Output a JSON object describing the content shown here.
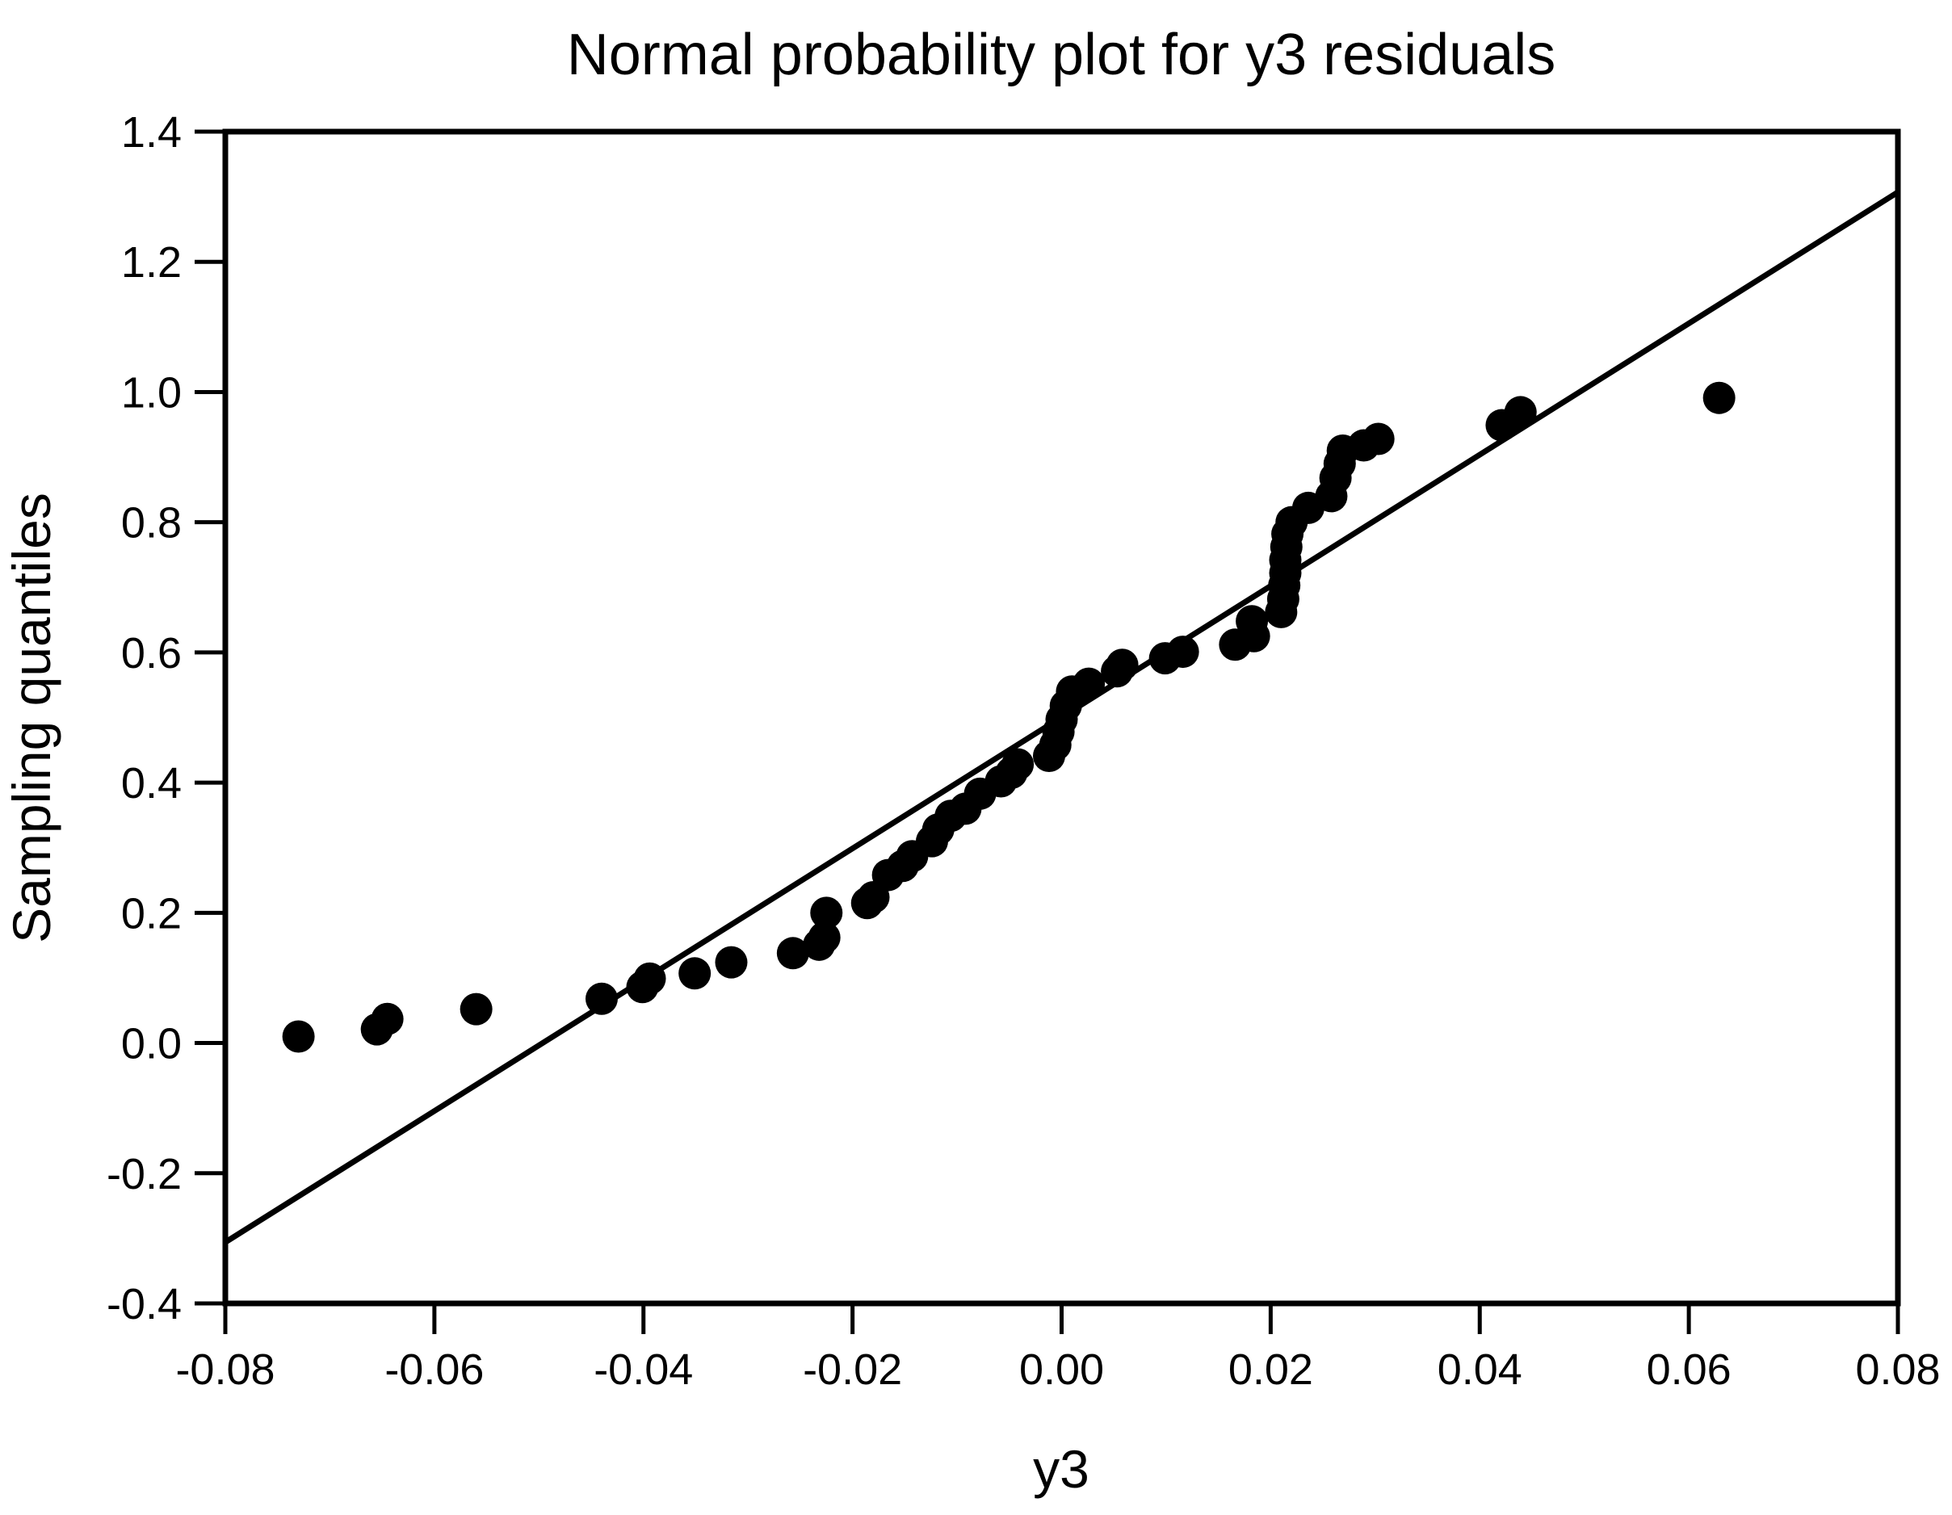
{
  "title": "Normal probability plot for y3 residuals",
  "x_axis": {
    "label": "y3",
    "min": -0.08,
    "max": 0.08,
    "tick_values": [
      -0.08,
      -0.06,
      -0.04,
      -0.02,
      0.0,
      0.02,
      0.04,
      0.06,
      0.08
    ],
    "tick_labels": [
      "-0.08",
      "-0.06",
      "-0.04",
      "-0.02",
      "0.00",
      "0.02",
      "0.04",
      "0.06",
      "0.08"
    ]
  },
  "y_axis": {
    "label": "Sampling quantiles",
    "min": -0.4,
    "max": 1.4,
    "tick_values": [
      -0.4,
      -0.2,
      0.0,
      0.2,
      0.4,
      0.6,
      0.8,
      1.0,
      1.2,
      1.4
    ],
    "tick_labels": [
      "-0.4",
      "-0.2",
      "0.0",
      "0.2",
      "0.4",
      "0.6",
      "0.8",
      "1.0",
      "1.2",
      "1.4"
    ]
  },
  "colors": {
    "background": "#ffffff",
    "frame": "#000000",
    "marker": "#000000",
    "reference_line": "#000000",
    "text": "#000000"
  },
  "chart_data": {
    "type": "scatter",
    "title": "Normal probability plot for y3 residuals",
    "xlabel": "y3",
    "ylabel": "Sampling quantiles",
    "xlim": [
      -0.08,
      0.08
    ],
    "ylim": [
      -0.4,
      1.4
    ],
    "grid": false,
    "legend_position": "none",
    "marker_style": "filled-circle",
    "series": [
      {
        "name": "y3 residual quantiles",
        "type": "scatter",
        "color": "#000000",
        "points": [
          [
            -0.073,
            0.01
          ],
          [
            -0.0655,
            0.021
          ],
          [
            -0.0645,
            0.037
          ],
          [
            -0.056,
            0.052
          ],
          [
            -0.044,
            0.068
          ],
          [
            -0.0401,
            0.086
          ],
          [
            -0.0394,
            0.099
          ],
          [
            -0.0351,
            0.107
          ],
          [
            -0.0316,
            0.124
          ],
          [
            -0.0257,
            0.138
          ],
          [
            -0.0232,
            0.151
          ],
          [
            -0.0227,
            0.162
          ],
          [
            -0.0225,
            0.2
          ],
          [
            -0.0186,
            0.215
          ],
          [
            -0.018,
            0.224
          ],
          [
            -0.0166,
            0.258
          ],
          [
            -0.0152,
            0.272
          ],
          [
            -0.0143,
            0.287
          ],
          [
            -0.0124,
            0.31
          ],
          [
            -0.0118,
            0.328
          ],
          [
            -0.0106,
            0.349
          ],
          [
            -0.0092,
            0.36
          ],
          [
            -0.0078,
            0.383
          ],
          [
            -0.0058,
            0.402
          ],
          [
            -0.0048,
            0.415
          ],
          [
            -0.0042,
            0.428
          ],
          [
            -0.0012,
            0.441
          ],
          [
            -0.0006,
            0.458
          ],
          [
            -0.0003,
            0.478
          ],
          [
            0.0,
            0.497
          ],
          [
            0.0004,
            0.518
          ],
          [
            0.001,
            0.54
          ],
          [
            0.0026,
            0.552
          ],
          [
            0.0053,
            0.571
          ],
          [
            0.0058,
            0.581
          ],
          [
            0.0099,
            0.591
          ],
          [
            0.0116,
            0.601
          ],
          [
            0.0166,
            0.612
          ],
          [
            0.0184,
            0.625
          ],
          [
            0.0182,
            0.648
          ],
          [
            0.021,
            0.662
          ],
          [
            0.0212,
            0.682
          ],
          [
            0.0213,
            0.703
          ],
          [
            0.0214,
            0.722
          ],
          [
            0.0214,
            0.742
          ],
          [
            0.0215,
            0.762
          ],
          [
            0.0216,
            0.782
          ],
          [
            0.022,
            0.8
          ],
          [
            0.0236,
            0.822
          ],
          [
            0.0258,
            0.84
          ],
          [
            0.0262,
            0.868
          ],
          [
            0.0266,
            0.89
          ],
          [
            0.0269,
            0.91
          ],
          [
            0.0289,
            0.918
          ],
          [
            0.0303,
            0.928
          ],
          [
            0.0421,
            0.949
          ],
          [
            0.0439,
            0.969
          ],
          [
            0.0629,
            0.991
          ]
        ]
      },
      {
        "name": "normal reference line",
        "type": "line",
        "color": "#000000",
        "points": [
          [
            -0.08,
            -0.306
          ],
          [
            0.08,
            1.307
          ]
        ]
      }
    ]
  }
}
